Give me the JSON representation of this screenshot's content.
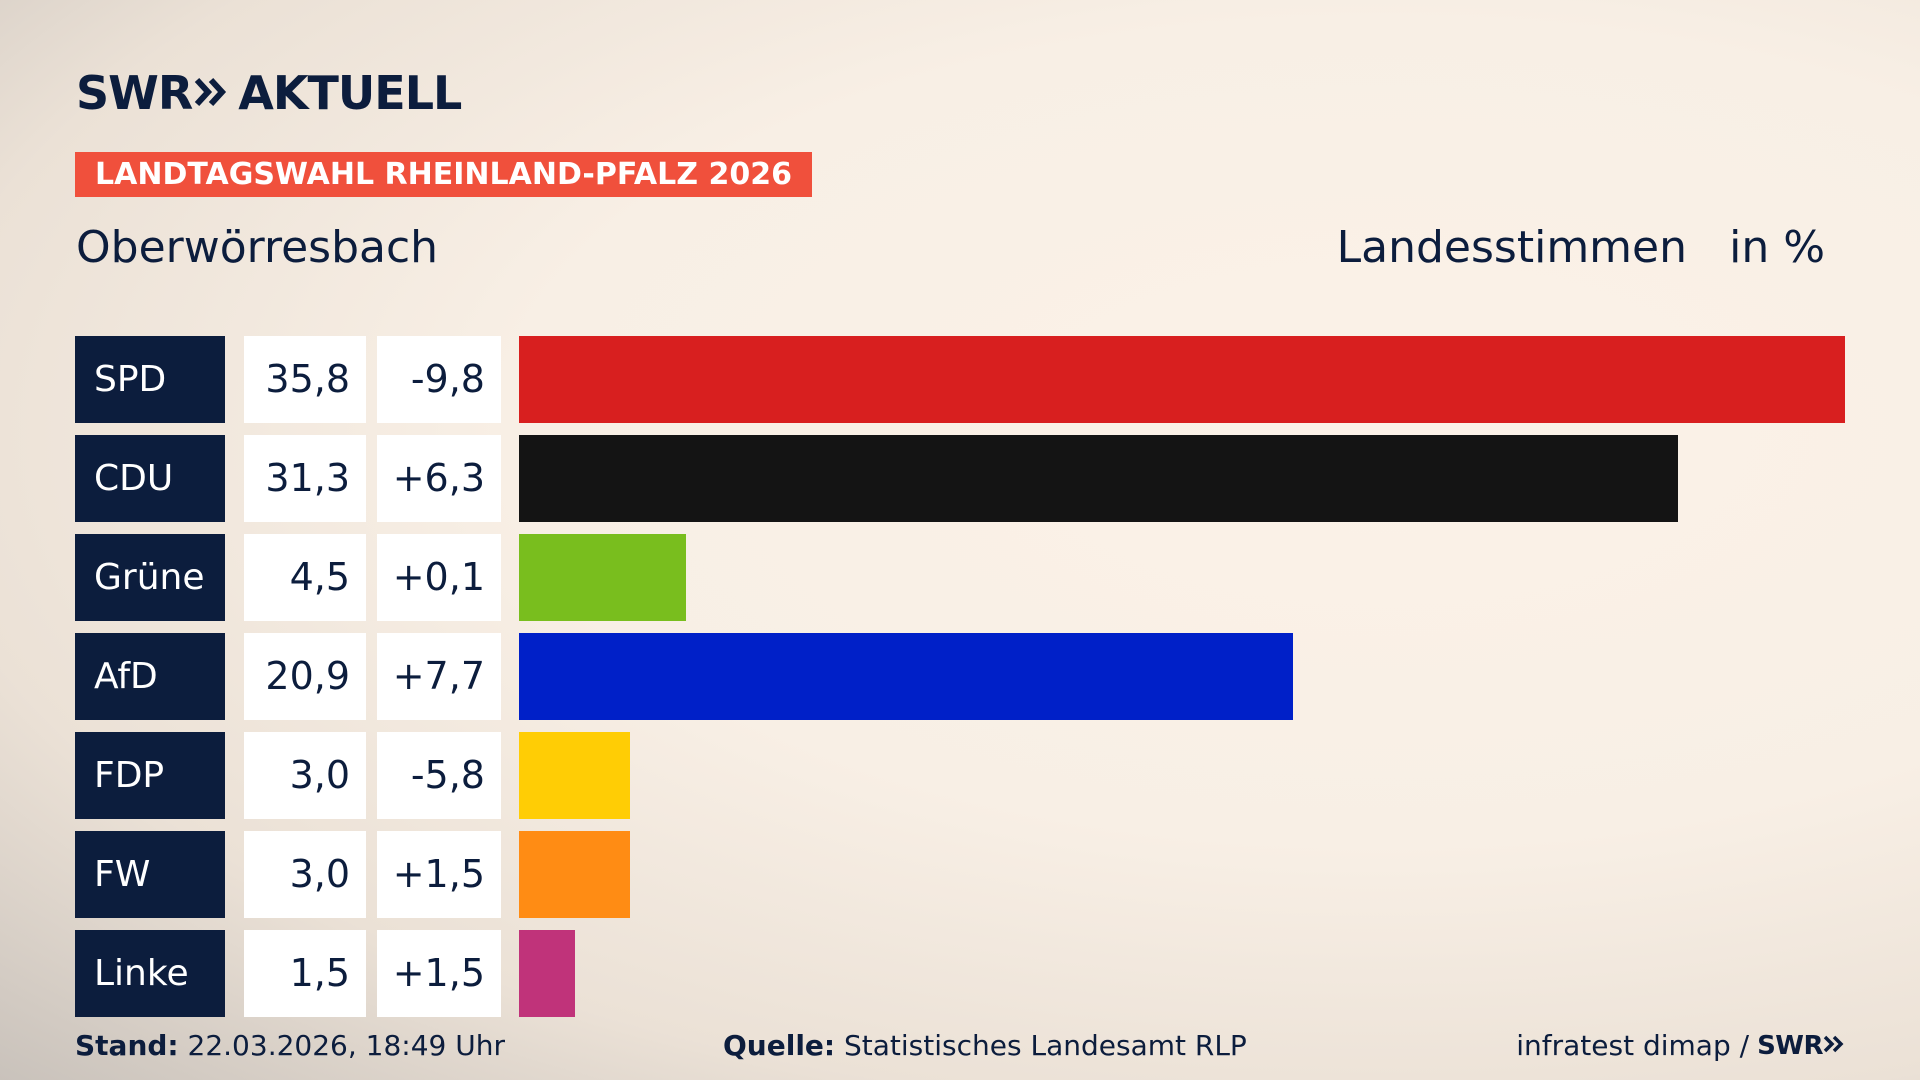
{
  "brand": {
    "logo_part1": "SWR",
    "logo_part2": "AKTUELL",
    "logo_chevron_icon": "double-chevron-right-icon",
    "badge": "LANDTAGSWAHL RHEINLAND-PFALZ 2026",
    "badge_color": "#f0503c",
    "navy": "#0c1d3d"
  },
  "header": {
    "place": "Oberwörresbach",
    "vote_type": "Landesstimmen",
    "unit": "in %"
  },
  "chart_data": {
    "type": "bar",
    "orientation": "horizontal",
    "categories": [
      "SPD",
      "CDU",
      "Grüne",
      "AfD",
      "FDP",
      "FW",
      "Linke"
    ],
    "values": [
      35.8,
      31.3,
      4.5,
      20.9,
      3.0,
      3.0,
      1.5
    ],
    "value_labels": [
      "35,8",
      "31,3",
      "4,5",
      "20,9",
      "3,0",
      "3,0",
      "1,5"
    ],
    "change_labels": [
      "-9,8",
      "+6,3",
      "+0,1",
      "+7,7",
      "-5,8",
      "+1,5",
      "+1,5"
    ],
    "colors": [
      "#d81f1f",
      "#141414",
      "#79be1e",
      "#0020c8",
      "#ffcd05",
      "#ff8c14",
      "#c0337a"
    ],
    "xlim": [
      0,
      35.8
    ],
    "grid": false,
    "legend": "none"
  },
  "footer": {
    "stand_label": "Stand:",
    "stand_value": "22.03.2026, 18:49 Uhr",
    "source_label": "Quelle:",
    "source_value": "Statistisches Landesamt RLP",
    "credit": "infratest dimap /",
    "credit_logo": "SWR"
  }
}
